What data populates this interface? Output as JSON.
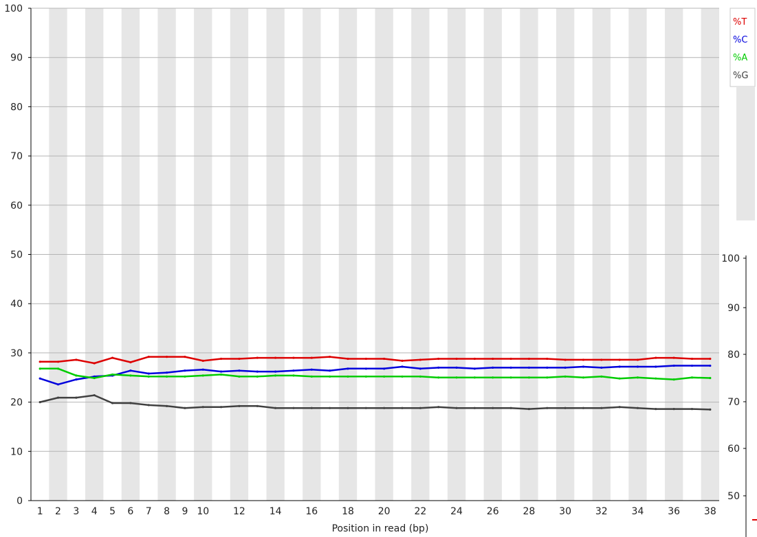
{
  "chart_data": {
    "type": "line",
    "xlabel": "Position in read (bp)",
    "x": [
      1,
      2,
      3,
      4,
      5,
      6,
      7,
      8,
      9,
      10,
      11,
      12,
      13,
      14,
      15,
      16,
      17,
      18,
      19,
      20,
      21,
      22,
      23,
      24,
      25,
      26,
      27,
      28,
      29,
      30,
      31,
      32,
      33,
      34,
      35,
      36,
      37,
      38
    ],
    "x_tick_labels": [
      "1",
      "2",
      "3",
      "4",
      "5",
      "6",
      "7",
      "8",
      "9",
      "10",
      "12",
      "14",
      "16",
      "18",
      "20",
      "22",
      "24",
      "26",
      "28",
      "30",
      "32",
      "34",
      "36",
      "38"
    ],
    "y_tick_labels": [
      "0",
      "10",
      "20",
      "30",
      "40",
      "50",
      "60",
      "70",
      "80",
      "90",
      "100"
    ],
    "ylim": [
      0,
      100
    ],
    "grid": "alternating vertical shaded bands",
    "legend_position": "top-right",
    "series": [
      {
        "name": "%T",
        "color": "#dd0000",
        "values": [
          28.2,
          28.2,
          28.6,
          27.9,
          29.0,
          28.1,
          29.2,
          29.2,
          29.2,
          28.4,
          28.8,
          28.8,
          29.0,
          29.0,
          29.0,
          29.0,
          29.2,
          28.8,
          28.8,
          28.8,
          28.4,
          28.6,
          28.8,
          28.8,
          28.8,
          28.8,
          28.8,
          28.8,
          28.8,
          28.6,
          28.6,
          28.6,
          28.6,
          28.6,
          29.0,
          29.0,
          28.8,
          28.8
        ]
      },
      {
        "name": "%C",
        "color": "#0000dd",
        "values": [
          24.8,
          23.6,
          24.6,
          25.2,
          25.4,
          26.4,
          25.8,
          26.0,
          26.4,
          26.6,
          26.2,
          26.4,
          26.2,
          26.2,
          26.4,
          26.6,
          26.4,
          26.8,
          26.8,
          26.8,
          27.2,
          26.8,
          27.0,
          27.0,
          26.8,
          27.0,
          27.0,
          27.0,
          27.0,
          27.0,
          27.2,
          27.0,
          27.2,
          27.2,
          27.2,
          27.4,
          27.4,
          27.4
        ]
      },
      {
        "name": "%A",
        "color": "#00cc00",
        "values": [
          26.8,
          26.8,
          25.4,
          24.9,
          25.6,
          25.4,
          25.2,
          25.2,
          25.2,
          25.4,
          25.6,
          25.2,
          25.2,
          25.4,
          25.4,
          25.2,
          25.2,
          25.2,
          25.2,
          25.2,
          25.2,
          25.2,
          25.0,
          25.0,
          25.0,
          25.0,
          25.0,
          25.0,
          25.0,
          25.2,
          25.0,
          25.2,
          24.8,
          25.0,
          24.8,
          24.6,
          25.0,
          24.9
        ]
      },
      {
        "name": "%G",
        "color": "#404040",
        "values": [
          20.0,
          20.9,
          20.9,
          21.4,
          19.8,
          19.8,
          19.4,
          19.2,
          18.8,
          19.0,
          19.0,
          19.2,
          19.2,
          18.8,
          18.8,
          18.8,
          18.8,
          18.8,
          18.8,
          18.8,
          18.8,
          18.8,
          19.0,
          18.8,
          18.8,
          18.8,
          18.8,
          18.6,
          18.8,
          18.8,
          18.8,
          18.8,
          19.0,
          18.8,
          18.6,
          18.6,
          18.6,
          18.5
        ]
      }
    ]
  },
  "overlay": {
    "y_tick_labels": [
      "50",
      "60",
      "70",
      "80",
      "90",
      "100"
    ]
  }
}
